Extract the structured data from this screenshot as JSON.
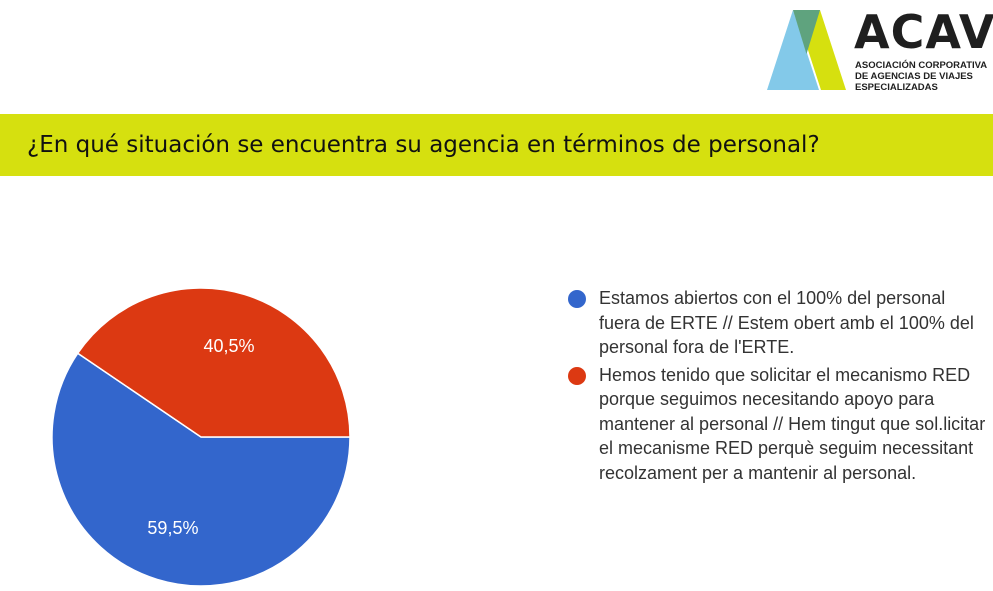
{
  "logo": {
    "wordmark": "ACAVE",
    "subtitle": "Asociación corporativa de agencias de viajes especializadas",
    "colors": {
      "blue": "#7cc6e8",
      "green": "#5fa37e",
      "yellow": "#d6e00f"
    }
  },
  "question": "¿En qué situación se encuentra su agencia en términos de personal?",
  "chart_data": {
    "type": "pie",
    "title": "",
    "slices": [
      {
        "label": "Estamos abiertos con el 100% del personal fuera de ERTE // Estem obert amb el 100% del personal fora de l'ERTE.",
        "value": 59.5,
        "display": "59,5%",
        "color": "#3366cc"
      },
      {
        "label": "Hemos tenido que solicitar el mecanismo RED porque seguimos necesitando apoyo para mantener al personal // Hem tingut que sol.licitar el mecanisme RED perquè seguim necessitant recolzament per a mantenir al personal.",
        "value": 40.5,
        "display": "40,5%",
        "color": "#dc3912"
      }
    ],
    "legend_position": "right"
  }
}
